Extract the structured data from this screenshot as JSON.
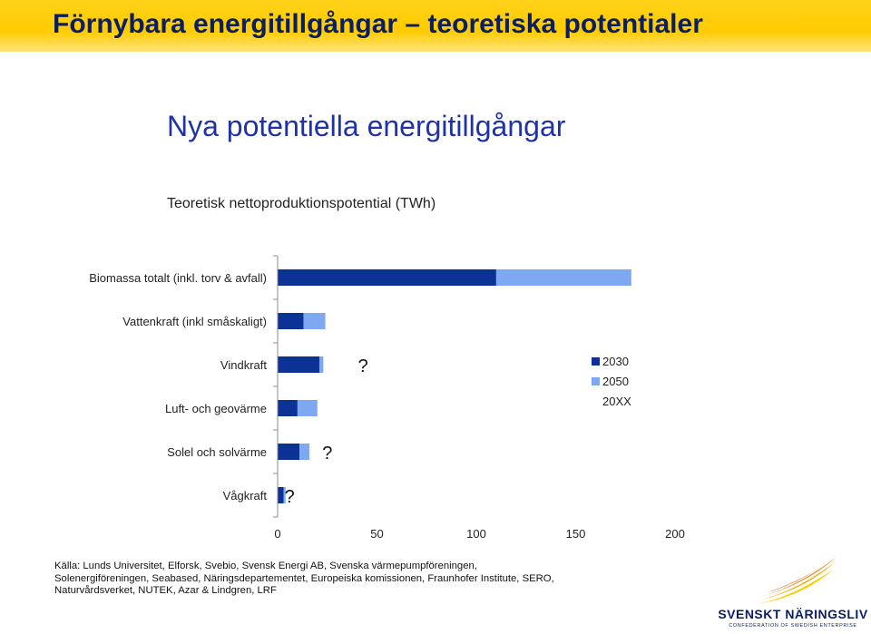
{
  "slide_title": "Förnybara energitillgångar – teoretiska potentialer",
  "chart_heading": "Nya potentiella energitillgångar",
  "chart_data": {
    "type": "bar",
    "orientation": "horizontal",
    "stacked": true,
    "title": "Teoretisk nettoproduktionspotential (TWh)",
    "categories": [
      "Biomassa totalt (inkl. torv & avfall)",
      "Vattenkraft (inkl småskaligt)",
      "Vindkraft",
      "Luft- och geovärme",
      "Solel och solvärme",
      "Vågkraft"
    ],
    "series": [
      {
        "name": "2030",
        "color": "#0b3294",
        "values": [
          110,
          13,
          21,
          10,
          11,
          3
        ]
      },
      {
        "name": "2050",
        "color": "#7ea8f2",
        "values": [
          68,
          11,
          2,
          10,
          5,
          1
        ]
      },
      {
        "name": "20XX",
        "color": "#ffffff",
        "values": [
          null,
          null,
          null,
          null,
          null,
          null
        ]
      }
    ],
    "annotations": [
      {
        "category": "Vindkraft",
        "text": "?",
        "x": 43
      },
      {
        "category": "Solel och solvärme",
        "text": "?",
        "x": 25
      },
      {
        "category": "Vågkraft",
        "text": "?",
        "x": 6
      }
    ],
    "xlim": [
      0,
      200
    ],
    "xticks": [
      "0",
      "50",
      "100",
      "150",
      "200"
    ],
    "legend_position": "right",
    "grid": false
  },
  "source_note": "Källa: Lunds Universitet, Elforsk, Svebio, Svensk Energi AB, Svenska värmepumpföreningen, Solenergiföreningen, Seabased, Näringsdepartementet, Europeiska komissionen, Fraunhofer Institute, SERO, Naturvårdsverket, NUTEK, Azar & Lindgren, LRF",
  "logo": {
    "name": "SVENSKT NÄRINGSLIV",
    "tagline": "CONFEDERATION OF SWEDISH ENTERPRISE"
  }
}
